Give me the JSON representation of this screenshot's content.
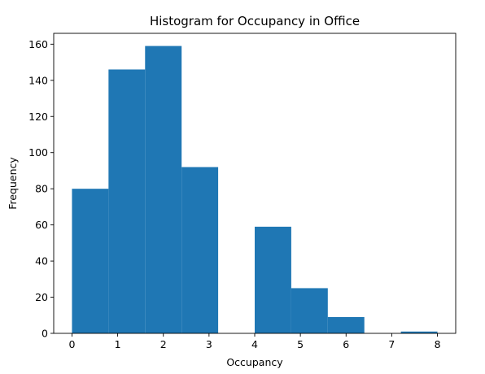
{
  "chart_data": {
    "type": "bar",
    "title": "Histogram for Occupancy in Office",
    "xlabel": "Occupancy",
    "ylabel": "Frequency",
    "xlim": [
      -0.4,
      8.4
    ],
    "ylim": [
      0,
      166
    ],
    "x_ticks": [
      0,
      1,
      2,
      3,
      4,
      5,
      6,
      7,
      8
    ],
    "y_ticks": [
      0,
      20,
      40,
      60,
      80,
      100,
      120,
      140,
      160
    ],
    "bin_edges": [
      0,
      0.8,
      1.6,
      2.4,
      3.2,
      4.0,
      4.8,
      5.6,
      6.4,
      7.2,
      8.0
    ],
    "values": [
      80,
      146,
      159,
      92,
      0,
      59,
      25,
      9,
      0,
      1
    ],
    "bar_color": "#1f77b4",
    "grid": false,
    "legend": "none"
  }
}
